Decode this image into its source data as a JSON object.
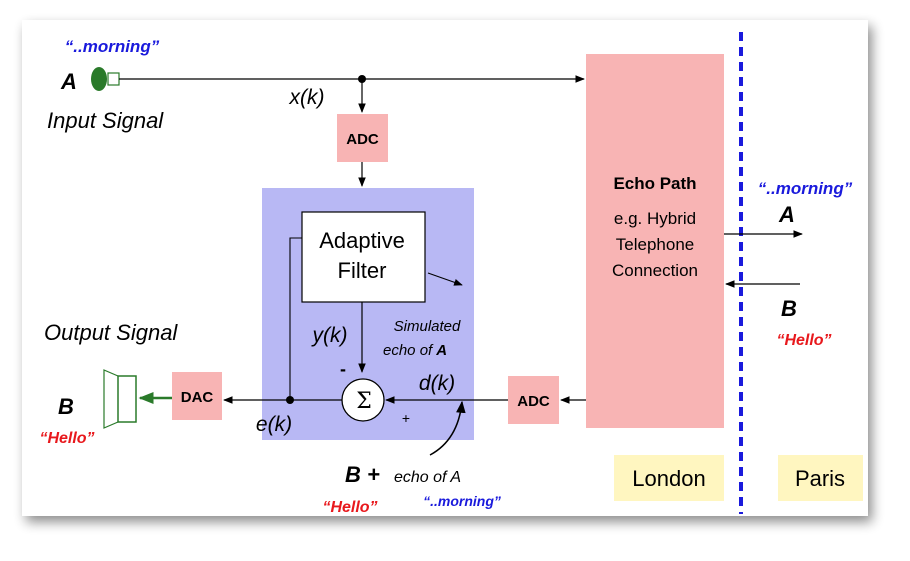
{
  "labels": {
    "morning_top": "“..morning”",
    "A_left": "A",
    "input_signal": "Input Signal",
    "xk": "x(k)",
    "adc_top": "ADC",
    "adaptive_filter_line1": "Adaptive",
    "adaptive_filter_line2": "Filter",
    "yk": "y(k)",
    "simulated_line1": "Simulated",
    "simulated_line2": "echo of",
    "simulated_A": "A",
    "minus": "-",
    "plus": "+",
    "sigma": "Σ",
    "dk": "d(k)",
    "ek": "e(k)",
    "adc_bottom": "ADC",
    "dac": "DAC",
    "output_signal": "Output Signal",
    "B_left": "B",
    "hello_left": "“Hello”",
    "b_plus": "B +",
    "echo_of_A_bottom": "echo of A",
    "hello_bottom": "“Hello”",
    "morning_bottom": "“..morning”",
    "echo_path_title": "Echo Path",
    "echo_path_line1": "e.g. Hybrid",
    "echo_path_line2": "Telephone",
    "echo_path_line3": "Connection",
    "morning_right": "“..morning”",
    "A_right": "A",
    "B_right": "B",
    "hello_right": "“Hello”",
    "london": "London",
    "paris": "Paris"
  },
  "colors": {
    "blue_text": "#1a1adc",
    "red_text": "#e8181c",
    "pink_box": "#f8b4b4",
    "lavender_box": "#b8b8f4",
    "yellow_box": "#fff6c0",
    "green": "#2a7a2a",
    "divider": "#1a1adc"
  }
}
